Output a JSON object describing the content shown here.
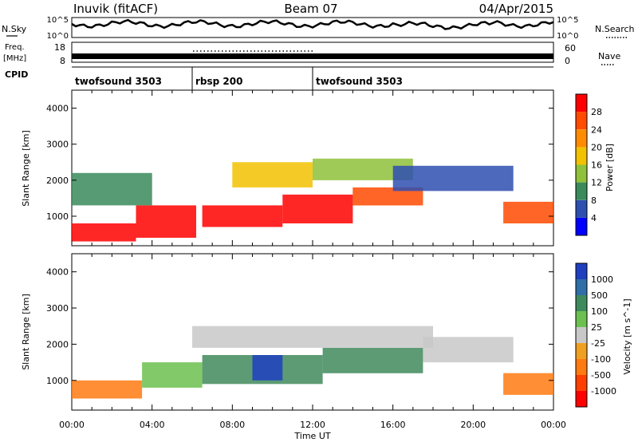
{
  "header": {
    "station": "Inuvik (fitACF)",
    "beam": "Beam 07",
    "date": "04/Apr/2015"
  },
  "summary": {
    "nsky_label": "N.Sky",
    "nsearch_label": "N.Search",
    "freq_label": "Freq.",
    "freq_unit": "[MHz]",
    "nave_label": "Nave",
    "cpid_label": "CPID",
    "nsky_ticks": [
      "10^5",
      "10^0"
    ],
    "nsearch_ticks": [
      "10^5",
      "10^0"
    ],
    "freq_ticks": [
      "18",
      "8"
    ],
    "nave_ticks": [
      "60",
      "0"
    ]
  },
  "cpid_segments": [
    {
      "label": "twofsound 3503",
      "start_hour": 0,
      "end_hour": 6
    },
    {
      "label": "rbsp 200",
      "start_hour": 6,
      "end_hour": 12
    },
    {
      "label": "twofsound 3503",
      "start_hour": 12,
      "end_hour": 24
    }
  ],
  "chart_data": [
    {
      "type": "heatmap",
      "title": "",
      "ylabel": "Slant Range [km]",
      "xlabel": "Time UT",
      "xlim": [
        0,
        24
      ],
      "ylim": [
        180,
        4500
      ],
      "yticks": [
        1000,
        2000,
        3000,
        4000
      ],
      "xtick_labels": [
        "00:00",
        "04:00",
        "08:00",
        "12:00",
        "16:00",
        "20:00",
        "00:00"
      ],
      "colorbar": {
        "label": "Power [dB]",
        "ticks": [
          "4",
          "8",
          "12",
          "16",
          "20",
          "24",
          "28"
        ],
        "colors": [
          "#0000ff",
          "#2e4fb0",
          "#3a8a5c",
          "#8fc13a",
          "#f2c200",
          "#ff8c00",
          "#ff4a00",
          "#ff0000"
        ]
      },
      "regions": [
        {
          "x0": 0.0,
          "x1": 3.2,
          "y0": 300,
          "y1": 800,
          "level": 7
        },
        {
          "x0": 3.2,
          "x1": 6.2,
          "y0": 400,
          "y1": 1300,
          "level": 7
        },
        {
          "x0": 6.5,
          "x1": 10.5,
          "y0": 700,
          "y1": 1300,
          "level": 7
        },
        {
          "x0": 10.5,
          "x1": 14.0,
          "y0": 800,
          "y1": 1600,
          "level": 7
        },
        {
          "x0": 14.0,
          "x1": 17.5,
          "y0": 1300,
          "y1": 1800,
          "level": 6
        },
        {
          "x0": 21.5,
          "x1": 24.0,
          "y0": 800,
          "y1": 1400,
          "level": 6
        },
        {
          "x0": 0.0,
          "x1": 4.0,
          "y0": 1300,
          "y1": 2200,
          "level": 2
        },
        {
          "x0": 8.0,
          "x1": 12.0,
          "y0": 1800,
          "y1": 2500,
          "level": 4
        },
        {
          "x0": 12.0,
          "x1": 17.0,
          "y0": 2000,
          "y1": 2600,
          "level": 3
        },
        {
          "x0": 16.0,
          "x1": 22.0,
          "y0": 1700,
          "y1": 2400,
          "level": 1
        }
      ]
    },
    {
      "type": "heatmap",
      "title": "",
      "ylabel": "Slant Range [km]",
      "xlabel": "Time UT",
      "xlim": [
        0,
        24
      ],
      "ylim": [
        180,
        4500
      ],
      "yticks": [
        1000,
        2000,
        3000,
        4000
      ],
      "xtick_labels": [
        "00:00",
        "04:00",
        "08:00",
        "12:00",
        "16:00",
        "20:00",
        "00:00"
      ],
      "colorbar": {
        "label": "Velocity [m s^-1]",
        "ticks": [
          "1000",
          "500",
          "100",
          "25",
          "-25",
          "-100",
          "-500",
          "-1000"
        ],
        "colors": [
          "#1f3fbf",
          "#2f6fa8",
          "#3f8a5c",
          "#6cc050",
          "#c8c8c8",
          "#f0a020",
          "#ff7a10",
          "#ff4000",
          "#ff0000"
        ]
      },
      "regions": [
        {
          "x0": 0.0,
          "x1": 3.5,
          "y0": 500,
          "y1": 1000,
          "level": 6
        },
        {
          "x0": 3.5,
          "x1": 6.5,
          "y0": 800,
          "y1": 1500,
          "level": 3
        },
        {
          "x0": 6.5,
          "x1": 12.5,
          "y0": 900,
          "y1": 1700,
          "level": 2
        },
        {
          "x0": 9.0,
          "x1": 10.5,
          "y0": 1000,
          "y1": 1700,
          "level": 0
        },
        {
          "x0": 12.5,
          "x1": 17.5,
          "y0": 1200,
          "y1": 1900,
          "level": 2
        },
        {
          "x0": 6.0,
          "x1": 18.0,
          "y0": 1900,
          "y1": 2500,
          "level": 4
        },
        {
          "x0": 17.5,
          "x1": 22.0,
          "y0": 1500,
          "y1": 2200,
          "level": 4
        },
        {
          "x0": 21.5,
          "x1": 24.0,
          "y0": 600,
          "y1": 1200,
          "level": 6
        }
      ]
    }
  ]
}
